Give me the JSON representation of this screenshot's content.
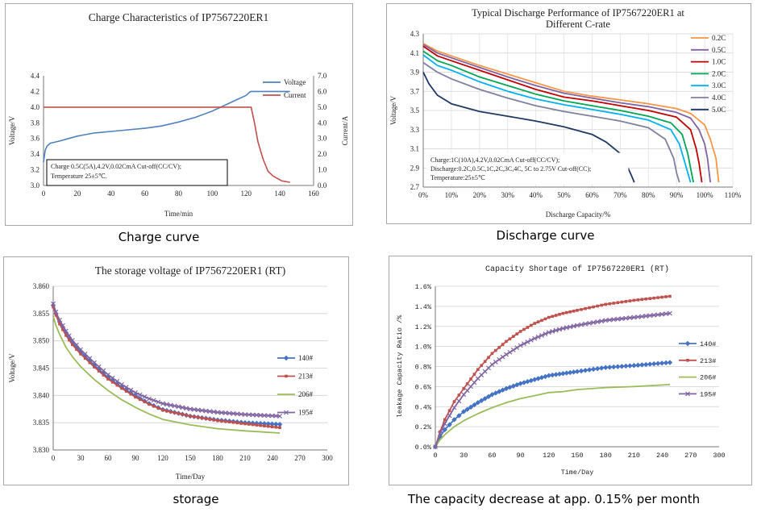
{
  "captions": {
    "charge": "Charge curve",
    "discharge": "Discharge curve",
    "storage": "storage",
    "capacity": "The capacity decrease at app. 0.15% per month"
  },
  "chart_data": [
    {
      "id": "charge",
      "type": "line",
      "title": "Charge Characteristics of IP7567220ER1",
      "xlabel": "Time/min",
      "ylabel": "Voltage/V",
      "y2label": "Current/A",
      "xlim": [
        0,
        160
      ],
      "ylim": [
        3.0,
        4.4
      ],
      "y2lim": [
        0.0,
        7.0
      ],
      "xticks": [
        "0",
        "20",
        "40",
        "60",
        "80",
        "100",
        "120",
        "140",
        "160"
      ],
      "yticks": [
        "3.0",
        "3.2",
        "3.4",
        "3.6",
        "3.8",
        "4.0",
        "4.2",
        "4.4"
      ],
      "y2ticks": [
        "0.0",
        "1.0",
        "2.0",
        "3.0",
        "4.0",
        "5.0",
        "6.0",
        "7.0"
      ],
      "annotation": [
        "Charge 0.5C(5A),4.2V,0.02CmA Cut-off(CC/CV);",
        "Temperature 25±5℃."
      ],
      "series": [
        {
          "name": "Voltage",
          "axis": "left",
          "color": "#4f81bd",
          "x": [
            0,
            1,
            2,
            4,
            6,
            10,
            15,
            20,
            25,
            30,
            40,
            50,
            60,
            70,
            80,
            90,
            100,
            110,
            115,
            120,
            122,
            123,
            130,
            140,
            146
          ],
          "y": [
            3.3,
            3.45,
            3.5,
            3.54,
            3.55,
            3.57,
            3.6,
            3.63,
            3.65,
            3.67,
            3.69,
            3.71,
            3.73,
            3.76,
            3.81,
            3.87,
            3.95,
            4.05,
            4.1,
            4.15,
            4.19,
            4.2,
            4.2,
            4.2,
            4.2
          ]
        },
        {
          "name": "Current",
          "axis": "right",
          "color": "#c0504d",
          "x": [
            0,
            123,
            125,
            127,
            130,
            133,
            136,
            141,
            146
          ],
          "y": [
            5.0,
            5.0,
            4.0,
            2.8,
            1.7,
            0.9,
            0.6,
            0.3,
            0.2
          ]
        }
      ]
    },
    {
      "id": "discharge",
      "type": "line",
      "title": [
        "Typical Discharge Performance of IP7567220ER1 at",
        "Different C-rate"
      ],
      "xlabel": "Discharge Capacity/%",
      "ylabel": "Voltage/V",
      "xlim": [
        0,
        110
      ],
      "ylim": [
        2.7,
        4.3
      ],
      "xticks": [
        "0%",
        "10%",
        "20%",
        "30%",
        "40%",
        "50%",
        "60%",
        "70%",
        "80%",
        "90%",
        "100%",
        "110%"
      ],
      "yticks": [
        "2.7",
        "2.9",
        "3.1",
        "3.3",
        "3.5",
        "3.7",
        "3.9",
        "4.1",
        "4.3"
      ],
      "annotation": [
        "Charge:1C(10A),4.2V,0.02CmA Cut-off(CC/CV);",
        "Discharge:0.2C,0.5C,1C,2C,3C,4C, 5C to 2.75V Cut-off(CC);",
        "Temperature:25±5℃"
      ],
      "series": [
        {
          "name": "0.2C",
          "color": "#f79646",
          "x": [
            0,
            5,
            10,
            20,
            30,
            40,
            50,
            60,
            70,
            80,
            90,
            95,
            100,
            102,
            104,
            105
          ],
          "y": [
            4.2,
            4.12,
            4.07,
            3.97,
            3.88,
            3.79,
            3.7,
            3.65,
            3.61,
            3.57,
            3.52,
            3.47,
            3.35,
            3.2,
            3.0,
            2.75
          ]
        },
        {
          "name": "0.5C",
          "color": "#8064a2",
          "x": [
            0,
            5,
            10,
            20,
            30,
            40,
            50,
            60,
            70,
            80,
            90,
            95,
            98,
            100,
            101,
            102
          ],
          "y": [
            4.19,
            4.1,
            4.05,
            3.95,
            3.85,
            3.76,
            3.68,
            3.63,
            3.58,
            3.54,
            3.48,
            3.42,
            3.3,
            3.15,
            3.0,
            2.75
          ]
        },
        {
          "name": "1.0C",
          "color": "#c00000",
          "x": [
            0,
            5,
            10,
            20,
            30,
            40,
            50,
            60,
            70,
            80,
            90,
            95,
            97,
            98,
            99
          ],
          "y": [
            4.17,
            4.07,
            4.02,
            3.92,
            3.82,
            3.72,
            3.64,
            3.6,
            3.55,
            3.5,
            3.43,
            3.3,
            3.1,
            2.95,
            2.75
          ]
        },
        {
          "name": "2.0C",
          "color": "#00a651",
          "x": [
            0,
            5,
            10,
            20,
            30,
            40,
            50,
            60,
            70,
            80,
            88,
            92,
            94,
            95,
            96
          ],
          "y": [
            4.12,
            4.02,
            3.97,
            3.85,
            3.76,
            3.67,
            3.6,
            3.55,
            3.5,
            3.44,
            3.37,
            3.25,
            3.05,
            2.9,
            2.75
          ]
        },
        {
          "name": "3.0C",
          "color": "#00b0f0",
          "x": [
            0,
            5,
            10,
            20,
            30,
            40,
            50,
            60,
            70,
            80,
            88,
            91,
            93,
            94,
            95
          ],
          "y": [
            4.08,
            3.97,
            3.92,
            3.8,
            3.7,
            3.62,
            3.56,
            3.51,
            3.46,
            3.4,
            3.3,
            3.15,
            2.95,
            2.85,
            2.75
          ]
        },
        {
          "name": "4.0C",
          "color": "#7f7f9f",
          "x": [
            0,
            5,
            10,
            20,
            30,
            40,
            50,
            60,
            70,
            80,
            86,
            89,
            90,
            91
          ],
          "y": [
            4.0,
            3.9,
            3.83,
            3.72,
            3.63,
            3.55,
            3.49,
            3.44,
            3.39,
            3.32,
            3.2,
            3.0,
            2.85,
            2.75
          ]
        },
        {
          "name": "5.0C",
          "color": "#1f3864",
          "x": [
            0,
            2,
            5,
            10,
            20,
            30,
            40,
            50,
            60,
            65,
            70,
            72,
            74,
            75
          ],
          "y": [
            3.9,
            3.78,
            3.66,
            3.57,
            3.49,
            3.44,
            3.39,
            3.33,
            3.25,
            3.17,
            3.05,
            2.95,
            2.82,
            2.75
          ]
        }
      ]
    },
    {
      "id": "storage",
      "type": "line",
      "title": "The storage voltage of IP7567220ER1 (RT)",
      "xlabel": "Time/Day",
      "ylabel": "Voltage/V",
      "xlim": [
        0,
        300
      ],
      "ylim": [
        3.83,
        3.86
      ],
      "xticks": [
        "0",
        "30",
        "60",
        "90",
        "120",
        "150",
        "180",
        "210",
        "240",
        "270",
        "300"
      ],
      "yticks": [
        "3.830",
        "3.835",
        "3.840",
        "3.845",
        "3.850",
        "3.855",
        "3.860"
      ],
      "series": [
        {
          "name": "140#",
          "color": "#4472c4",
          "marker": "diamond",
          "x": [
            0,
            3,
            7,
            14,
            21,
            30,
            45,
            60,
            75,
            90,
            105,
            120,
            150,
            180,
            210,
            248
          ],
          "y": [
            3.8565,
            3.855,
            3.8535,
            3.8515,
            3.8497,
            3.848,
            3.8455,
            3.8433,
            3.8415,
            3.8399,
            3.8385,
            3.8374,
            3.8362,
            3.8355,
            3.835,
            3.8347
          ]
        },
        {
          "name": "213#",
          "color": "#c0504d",
          "marker": "square",
          "x": [
            0,
            3,
            7,
            14,
            21,
            30,
            45,
            60,
            75,
            90,
            105,
            120,
            150,
            180,
            210,
            248
          ],
          "y": [
            3.8562,
            3.8547,
            3.8531,
            3.851,
            3.8493,
            3.8476,
            3.8452,
            3.843,
            3.8413,
            3.8397,
            3.8384,
            3.8373,
            3.8362,
            3.8354,
            3.8348,
            3.8341
          ]
        },
        {
          "name": "206#",
          "color": "#9bbb59",
          "marker": "none",
          "x": [
            0,
            3,
            7,
            14,
            21,
            30,
            45,
            60,
            75,
            90,
            105,
            120,
            150,
            180,
            210,
            248
          ],
          "y": [
            3.8545,
            3.8528,
            3.8512,
            3.8488,
            3.8471,
            3.8453,
            3.8429,
            3.8409,
            3.8392,
            3.8378,
            3.8366,
            3.8356,
            3.8346,
            3.8339,
            3.8335,
            3.8331
          ]
        },
        {
          "name": "195#",
          "color": "#8064a2",
          "marker": "cross",
          "x": [
            0,
            3,
            7,
            14,
            21,
            30,
            45,
            60,
            75,
            90,
            105,
            120,
            150,
            180,
            210,
            248
          ],
          "y": [
            3.8568,
            3.8553,
            3.8538,
            3.8518,
            3.8501,
            3.8484,
            3.846,
            3.8438,
            3.842,
            3.8405,
            3.8394,
            3.8385,
            3.8375,
            3.8369,
            3.8365,
            3.8362
          ]
        }
      ]
    },
    {
      "id": "capacity",
      "type": "line",
      "title": "Capacity Shortage of IP7567220ER1 (RT)",
      "xlabel": "Time/Day",
      "ylabel": "leakage Capacity Ratio /%",
      "xlim": [
        0,
        300
      ],
      "ylim": [
        0.0,
        1.6
      ],
      "xticks": [
        "0",
        "30",
        "60",
        "90",
        "120",
        "150",
        "180",
        "210",
        "240",
        "270",
        "300"
      ],
      "yticks": [
        "0.0%",
        "0.2%",
        "0.4%",
        "0.6%",
        "0.8%",
        "1.0%",
        "1.2%",
        "1.4%",
        "1.6%"
      ],
      "series": [
        {
          "name": "140#",
          "color": "#4472c4",
          "marker": "diamond",
          "x": [
            0,
            5,
            10,
            20,
            30,
            45,
            60,
            75,
            90,
            105,
            120,
            135,
            150,
            180,
            210,
            248
          ],
          "y": [
            0.0,
            0.1,
            0.17,
            0.27,
            0.35,
            0.44,
            0.52,
            0.58,
            0.63,
            0.67,
            0.71,
            0.73,
            0.75,
            0.79,
            0.81,
            0.84
          ]
        },
        {
          "name": "213#",
          "color": "#c0504d",
          "marker": "square",
          "x": [
            0,
            5,
            10,
            20,
            30,
            45,
            60,
            75,
            90,
            105,
            120,
            135,
            150,
            180,
            210,
            248
          ],
          "y": [
            0.0,
            0.15,
            0.27,
            0.45,
            0.58,
            0.77,
            0.93,
            1.05,
            1.15,
            1.23,
            1.29,
            1.33,
            1.36,
            1.42,
            1.46,
            1.5
          ]
        },
        {
          "name": "206#",
          "color": "#9bbb59",
          "marker": "none",
          "x": [
            0,
            5,
            10,
            20,
            30,
            45,
            60,
            75,
            90,
            105,
            120,
            135,
            150,
            180,
            210,
            248
          ],
          "y": [
            0.0,
            0.07,
            0.12,
            0.2,
            0.26,
            0.33,
            0.39,
            0.44,
            0.48,
            0.51,
            0.54,
            0.55,
            0.57,
            0.59,
            0.6,
            0.62
          ]
        },
        {
          "name": "195#",
          "color": "#8064a2",
          "marker": "cross",
          "x": [
            0,
            5,
            10,
            20,
            30,
            45,
            60,
            75,
            90,
            105,
            120,
            135,
            150,
            180,
            210,
            248
          ],
          "y": [
            0.0,
            0.13,
            0.23,
            0.39,
            0.52,
            0.68,
            0.82,
            0.92,
            1.01,
            1.08,
            1.14,
            1.18,
            1.21,
            1.26,
            1.29,
            1.33
          ]
        }
      ]
    }
  ]
}
